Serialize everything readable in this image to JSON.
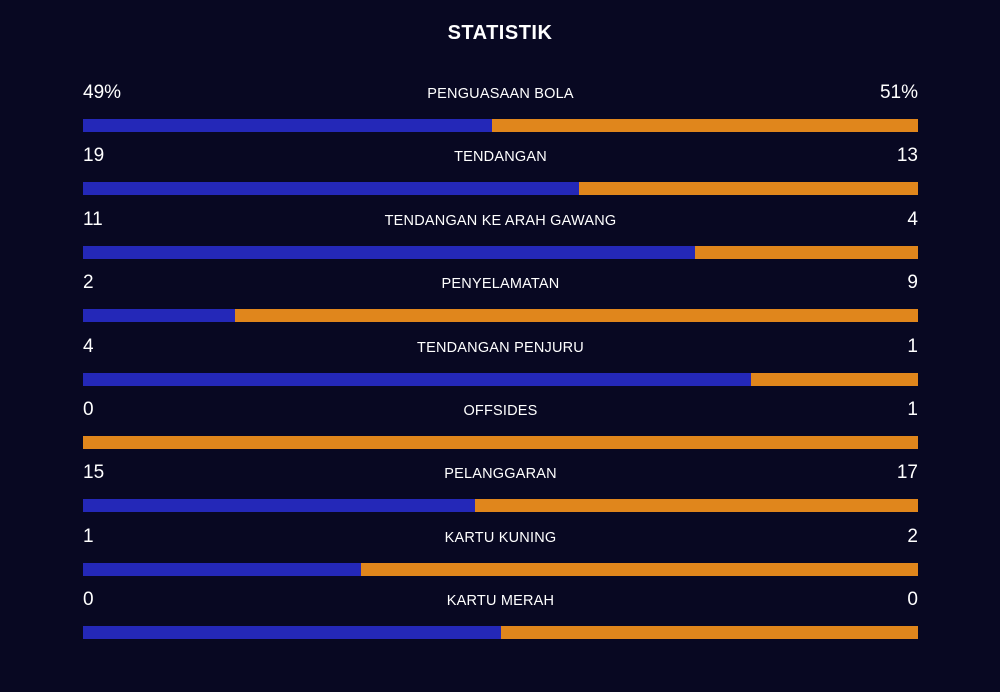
{
  "title": "STATISTIK",
  "colors": {
    "background": "#080822",
    "home": "#2428b8",
    "away": "#e0861c",
    "text": "#ffffff"
  },
  "stats": [
    {
      "label": "PENGUASAAN BOLA",
      "home": "49%",
      "away": "51%",
      "home_share": 0.49
    },
    {
      "label": "TENDANGAN",
      "home": "19",
      "away": "13",
      "home_share": 0.594
    },
    {
      "label": "TENDANGAN KE ARAH GAWANG",
      "home": "11",
      "away": "4",
      "home_share": 0.733
    },
    {
      "label": "PENYELAMATAN",
      "home": "2",
      "away": "9",
      "home_share": 0.182
    },
    {
      "label": "TENDANGAN PENJURU",
      "home": "4",
      "away": "1",
      "home_share": 0.8
    },
    {
      "label": "OFFSIDES",
      "home": "0",
      "away": "1",
      "home_share": 0.0
    },
    {
      "label": "PELANGGARAN",
      "home": "15",
      "away": "17",
      "home_share": 0.469
    },
    {
      "label": "KARTU KUNING",
      "home": "1",
      "away": "2",
      "home_share": 0.333
    },
    {
      "label": "KARTU MERAH",
      "home": "0",
      "away": "0",
      "home_share": 0.5
    }
  ]
}
